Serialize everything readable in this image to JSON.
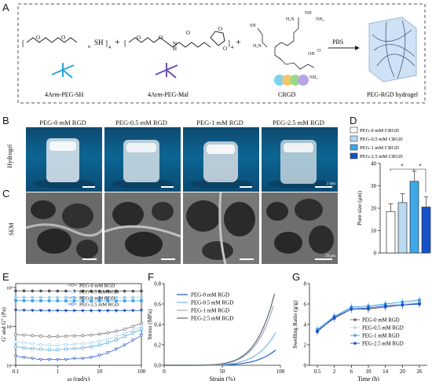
{
  "panels": {
    "A": "A",
    "B": "B",
    "C": "C",
    "D": "D",
    "E": "E",
    "F": "F",
    "G": "G"
  },
  "panelA": {
    "peg_sh": "4Arm-PEG-SH",
    "peg_mal": "4Arm-PEG-Mal",
    "crgd": "CRGD",
    "pbs": "PBS",
    "hydrogel": "PEG-RGD hydrogel",
    "plus": "+"
  },
  "panelB": {
    "row_label": "Hydrogel",
    "columns": [
      "PEG-0 mM RGD",
      "PEG-0.5 mM RGD",
      "PEG-1 mM RGD",
      "PEG-2.5 mM RGD"
    ],
    "scale": "2 mm"
  },
  "panelC": {
    "row_label": "SEM",
    "scale": "20 μm"
  },
  "colors": {
    "s0": "#ffffff",
    "s05": "#bcd9f2",
    "s1": "#3fa8e8",
    "s25": "#1450c8",
    "grey": "#555555"
  },
  "chart_data": [
    {
      "id": "D",
      "type": "bar",
      "categories": [
        "PEG-0 mM CRGD",
        "PEG-0.5 mM CRGD",
        "PEG-1 mM CRGD",
        "PEG-2.5 mM CRGD"
      ],
      "values": [
        18.5,
        22.5,
        32,
        20.5
      ],
      "errors": [
        3.5,
        4,
        4.5,
        4.5
      ],
      "legend": [
        "PEG-0 mM CRGD",
        "PEG-0.5 mM CRGD",
        "PEG-1 mM CRGD",
        "PEG-2.5 mM CRGD"
      ],
      "ylabel": "Pore size (μm)",
      "ylim": [
        0,
        40
      ],
      "yticks": [
        "0",
        "10",
        "20",
        "30",
        "40"
      ],
      "significance": [
        "*",
        "*"
      ]
    },
    {
      "id": "E",
      "type": "scatter",
      "xlabel": "ω (rad/s)",
      "ylabel": "G' and G'' (Pa)",
      "xticks": [
        "0.1",
        "1",
        "10",
        "100"
      ],
      "yticks": [
        "10¹",
        "10²",
        "10³"
      ],
      "legend": [
        "PEG-0 mM RGD",
        "PEG-0.5 mM RGD",
        "PEG-1 mM RGD",
        "PEG-2.5 mM RGD"
      ],
      "x": [
        0.1,
        0.158,
        0.251,
        0.398,
        0.631,
        1,
        1.58,
        2.51,
        3.98,
        6.31,
        10,
        15.8,
        25.1,
        39.8,
        63.1,
        100
      ],
      "series": [
        {
          "name": "PEG-0 mM RGD",
          "Gp": [
            820,
            820,
            815,
            815,
            812,
            810,
            810,
            808,
            808,
            806,
            806,
            805,
            805,
            805,
            806,
            808
          ],
          "Gpp": [
            62,
            60,
            58,
            56,
            55,
            55,
            56,
            57,
            58,
            60,
            63,
            68,
            75,
            85,
            100,
            120
          ]
        },
        {
          "name": "PEG-0.5 mM RGD",
          "Gp": [
            560,
            558,
            556,
            555,
            553,
            552,
            552,
            551,
            551,
            550,
            550,
            550,
            551,
            552,
            553,
            555
          ],
          "Gpp": [
            40,
            38,
            36,
            34,
            33,
            33,
            34,
            35,
            36,
            38,
            42,
            47,
            55,
            65,
            80,
            100
          ]
        },
        {
          "name": "PEG-1 mM RGD",
          "Gp": [
            460,
            458,
            456,
            455,
            454,
            453,
            452,
            452,
            451,
            451,
            451,
            452,
            452,
            453,
            454,
            456
          ],
          "Gpp": [
            30,
            28,
            27,
            26,
            25,
            25,
            26,
            27,
            28,
            30,
            33,
            38,
            45,
            55,
            68,
            85
          ]
        },
        {
          "name": "PEG-2.5 mM RGD",
          "Gp": [
            260,
            258,
            256,
            255,
            254,
            253,
            252,
            252,
            251,
            251,
            251,
            252,
            252,
            253,
            254,
            256
          ],
          "Gpp": [
            17,
            16,
            15,
            14,
            14,
            14,
            14,
            15,
            15,
            16,
            18,
            21,
            26,
            33,
            44,
            58
          ]
        }
      ]
    },
    {
      "id": "F",
      "type": "line",
      "xlabel": "Strain (%)",
      "ylabel": "Stress (MPa)",
      "xticks": [
        "0",
        "50",
        "100"
      ],
      "yticks": [
        "0.0",
        "0.2",
        "0.4",
        "0.6",
        "0.8"
      ],
      "xlim": [
        0,
        100
      ],
      "ylim": [
        0,
        0.8
      ],
      "legend": [
        "PEG-0 mM RGD",
        "PEG-0.5 mM RGD",
        "PEG-1 mM RGD",
        "PEG-2.5 mM RGD"
      ],
      "series": [
        {
          "name": "PEG-0 mM RGD",
          "max_strain": 96,
          "max_stress": 0.15
        },
        {
          "name": "PEG-0.5 mM RGD",
          "max_strain": 96,
          "max_stress": 0.32
        },
        {
          "name": "PEG-1 mM RGD",
          "max_strain": 94,
          "max_stress": 0.58
        },
        {
          "name": "PEG-2.5 mM RGD",
          "max_strain": 95,
          "max_stress": 0.7
        }
      ]
    },
    {
      "id": "G",
      "type": "line",
      "xlabel": "Time (h)",
      "ylabel": "Swelling Ratio (g/g)",
      "categories": [
        "0.5",
        "2",
        "6",
        "10",
        "14",
        "20",
        "26"
      ],
      "yticks": [
        "0",
        "2",
        "4",
        "6",
        "8"
      ],
      "ylim": [
        0,
        8
      ],
      "legend": [
        "PEG-0 mM RGD",
        "PEG-0.5 mM RGD",
        "PEG-1 mM RGD",
        "PEG-2.5 mM RGD"
      ],
      "series": [
        {
          "name": "PEG-0 mM RGD",
          "values": [
            3.4,
            4.6,
            5.5,
            5.5,
            5.7,
            5.9,
            6.1
          ]
        },
        {
          "name": "PEG-0.5 mM RGD",
          "values": [
            3.5,
            4.7,
            5.6,
            5.7,
            5.9,
            6.0,
            6.3
          ]
        },
        {
          "name": "PEG-1 mM RGD",
          "values": [
            3.5,
            4.8,
            5.7,
            5.8,
            6.0,
            6.2,
            6.4
          ]
        },
        {
          "name": "PEG-2.5 mM RGD",
          "values": [
            3.3,
            4.7,
            5.5,
            5.6,
            5.8,
            5.9,
            6.0
          ]
        }
      ]
    }
  ]
}
